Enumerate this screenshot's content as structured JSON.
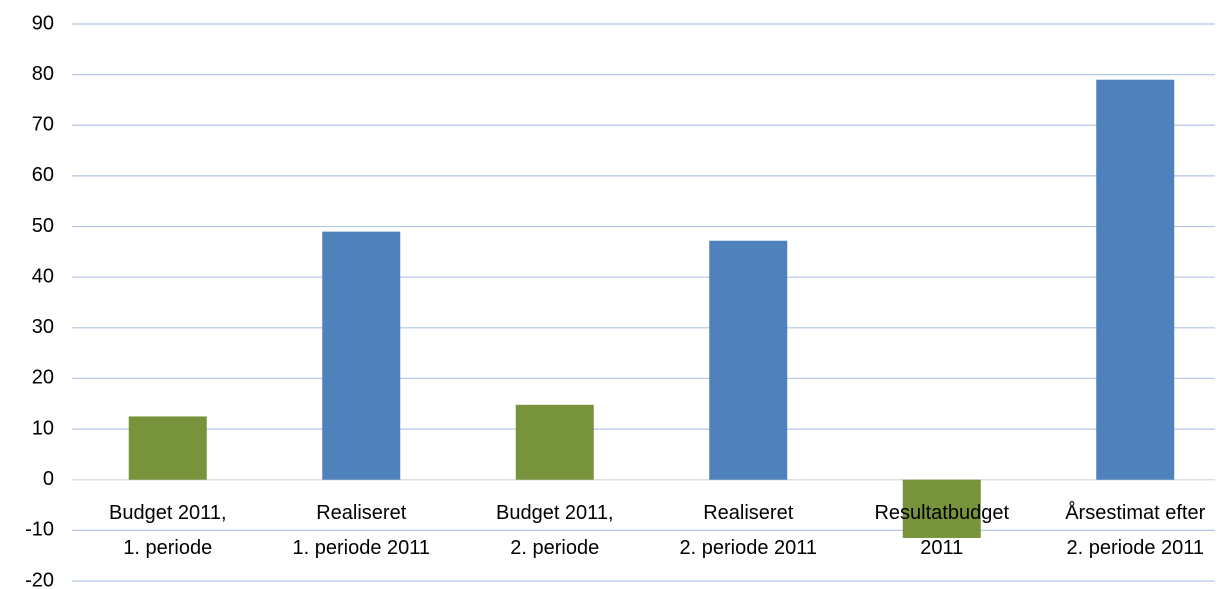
{
  "chart_data": {
    "type": "bar",
    "categories": [
      "Budget 2011,\n1. periode",
      "Realiseret\n1. periode 2011",
      "Budget 2011,\n2. periode",
      "Realiseret\n2. periode 2011",
      "Resultatbudget\n2011",
      "Årsestimat efter\n2. periode 2011"
    ],
    "values": [
      12.5,
      49,
      14.8,
      47.2,
      -11.5,
      79
    ],
    "colors": [
      "#77933c",
      "#4f81bd",
      "#77933c",
      "#4f81bd",
      "#77933c",
      "#4f81bd"
    ],
    "ylim": [
      -20,
      90
    ],
    "yticks": [
      -20,
      -10,
      0,
      10,
      20,
      30,
      40,
      50,
      60,
      70,
      80,
      90
    ],
    "grid": true
  }
}
